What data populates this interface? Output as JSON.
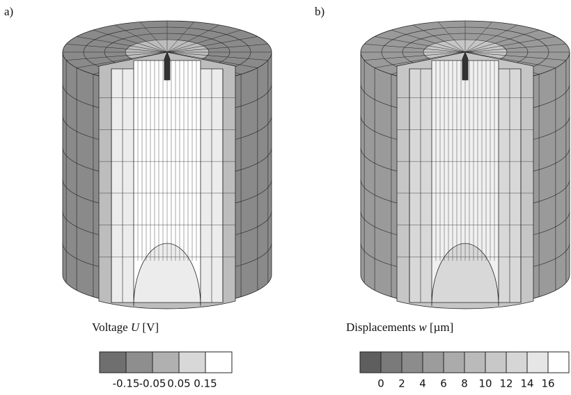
{
  "panels": [
    {
      "label": "a)",
      "legend": {
        "text": "Voltage",
        "symbol": "U",
        "unit": "[V]"
      },
      "colors": [
        "#6f6f6f",
        "#8e8e8e",
        "#b0b0b0",
        "#d8d8d8",
        "#ffffff"
      ],
      "ticks": [
        "-0.15",
        "-0.05",
        "0.05",
        "0.15"
      ]
    },
    {
      "label": "b)",
      "legend": {
        "text": "Displacements",
        "symbol": "w",
        "unit": "[µm]"
      },
      "colors": [
        "#5e5e5e",
        "#7a7a7a",
        "#8c8c8c",
        "#9c9c9c",
        "#ababab",
        "#bababa",
        "#c8c8c8",
        "#d6d6d6",
        "#e6e6e6",
        "#ffffff"
      ],
      "ticks": [
        "0",
        "2",
        "4",
        "6",
        "8",
        "10",
        "12",
        "14",
        "16"
      ]
    }
  ]
}
